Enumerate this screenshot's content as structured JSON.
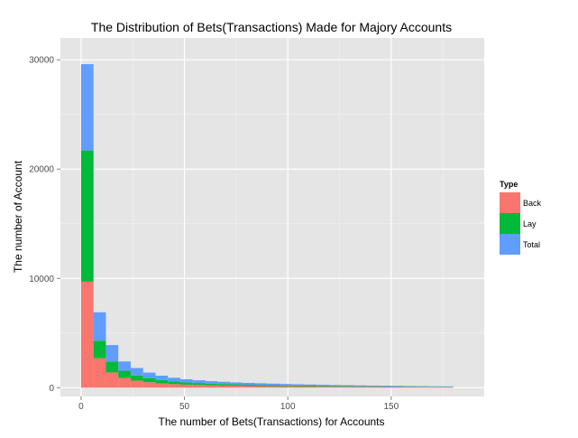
{
  "chart_data": {
    "type": "bar",
    "subtype": "stacked-histogram",
    "title": "The Distribution of Bets(Transactions) Made for Majory Accounts",
    "xlabel": "The number of Bets(Transactions) for Accounts",
    "ylabel": "The number of Account",
    "xlim": [
      -10,
      195
    ],
    "ylim": [
      -800,
      32000
    ],
    "x_ticks": [
      0,
      50,
      100,
      150
    ],
    "y_ticks": [
      0,
      10000,
      20000,
      30000
    ],
    "grid": true,
    "legend_placement": "right",
    "legend_title": "Type",
    "colors": {
      "Back": "#F8766D",
      "Lay": "#00BA38",
      "Total": "#619CFF",
      "panel_bg": "#E5E5E5",
      "grid_major": "#FFFFFF",
      "grid_minor": "#F2F2F2"
    },
    "bins": [
      {
        "x0": 0,
        "x1": 6
      },
      {
        "x0": 6,
        "x1": 12
      },
      {
        "x0": 12,
        "x1": 18
      },
      {
        "x0": 18,
        "x1": 24
      },
      {
        "x0": 24,
        "x1": 30
      },
      {
        "x0": 30,
        "x1": 36
      },
      {
        "x0": 36,
        "x1": 42
      },
      {
        "x0": 42,
        "x1": 48
      },
      {
        "x0": 48,
        "x1": 54
      },
      {
        "x0": 54,
        "x1": 60
      },
      {
        "x0": 60,
        "x1": 66
      },
      {
        "x0": 66,
        "x1": 72
      },
      {
        "x0": 72,
        "x1": 78
      },
      {
        "x0": 78,
        "x1": 84
      },
      {
        "x0": 84,
        "x1": 90
      },
      {
        "x0": 90,
        "x1": 96
      },
      {
        "x0": 96,
        "x1": 102
      },
      {
        "x0": 102,
        "x1": 108
      },
      {
        "x0": 108,
        "x1": 114
      },
      {
        "x0": 114,
        "x1": 120
      },
      {
        "x0": 120,
        "x1": 126
      },
      {
        "x0": 126,
        "x1": 132
      },
      {
        "x0": 132,
        "x1": 138
      },
      {
        "x0": 138,
        "x1": 144
      },
      {
        "x0": 144,
        "x1": 150
      },
      {
        "x0": 150,
        "x1": 156
      },
      {
        "x0": 156,
        "x1": 162
      },
      {
        "x0": 162,
        "x1": 168
      },
      {
        "x0": 168,
        "x1": 174
      },
      {
        "x0": 174,
        "x1": 180
      }
    ],
    "series": [
      {
        "name": "Back",
        "values": [
          9700,
          2700,
          1400,
          900,
          650,
          500,
          400,
          330,
          280,
          250,
          220,
          200,
          180,
          160,
          150,
          140,
          130,
          120,
          110,
          100,
          90,
          85,
          80,
          75,
          70,
          65,
          60,
          55,
          50,
          45
        ]
      },
      {
        "name": "Lay",
        "values": [
          12000,
          1600,
          1000,
          650,
          470,
          380,
          300,
          250,
          210,
          180,
          160,
          140,
          125,
          115,
          105,
          95,
          85,
          80,
          75,
          70,
          65,
          60,
          55,
          50,
          45,
          40,
          38,
          35,
          32,
          30
        ]
      },
      {
        "name": "Total",
        "values": [
          7900,
          2600,
          1500,
          850,
          680,
          500,
          400,
          330,
          280,
          250,
          220,
          200,
          180,
          165,
          150,
          140,
          130,
          120,
          110,
          100,
          90,
          85,
          80,
          75,
          70,
          65,
          60,
          55,
          50,
          45
        ]
      }
    ]
  }
}
